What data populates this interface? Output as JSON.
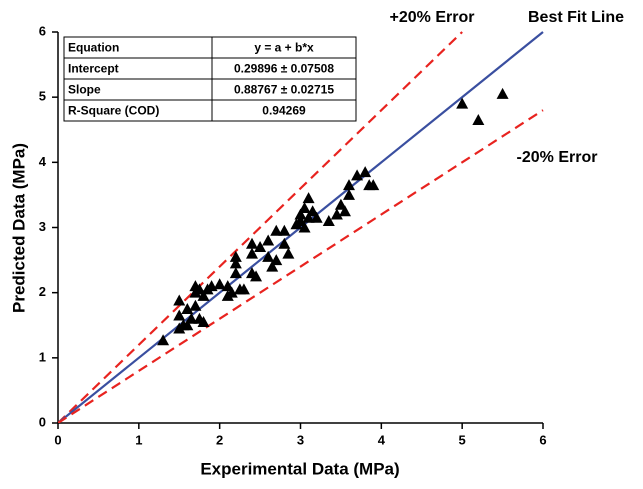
{
  "chart_data": {
    "type": "scatter",
    "xlabel": "Experimental Data (MPa)",
    "ylabel": "Predicted Data (MPa)",
    "xlim": [
      0,
      6
    ],
    "ylim": [
      0,
      6
    ],
    "xticks": [
      0,
      1,
      2,
      3,
      4,
      5,
      6
    ],
    "yticks": [
      0,
      1,
      2,
      3,
      4,
      5,
      6
    ],
    "series": [
      {
        "type": "scatter",
        "color": "#000000",
        "x": [
          1.3,
          1.5,
          1.5,
          1.5,
          1.55,
          1.6,
          1.6,
          1.65,
          1.7,
          1.7,
          1.7,
          1.75,
          1.75,
          1.8,
          1.8,
          1.85,
          1.9,
          2.0,
          2.1,
          2.1,
          2.15,
          2.2,
          2.2,
          2.2,
          2.25,
          2.3,
          2.4,
          2.4,
          2.4,
          2.45,
          2.5,
          2.6,
          2.6,
          2.65,
          2.7,
          2.7,
          2.8,
          2.8,
          2.85,
          2.95,
          3.0,
          3.0,
          3.05,
          3.05,
          3.1,
          3.1,
          3.15,
          3.2,
          3.35,
          3.45,
          3.5,
          3.55,
          3.6,
          3.6,
          3.7,
          3.8,
          3.85,
          3.9,
          5.0,
          5.2,
          5.5
        ],
        "values": [
          1.27,
          1.88,
          1.65,
          1.45,
          1.5,
          1.75,
          1.5,
          1.6,
          2.1,
          2.0,
          1.8,
          2.05,
          1.6,
          1.95,
          1.55,
          2.05,
          2.1,
          2.13,
          1.95,
          2.1,
          2.0,
          2.55,
          2.45,
          2.3,
          2.05,
          2.05,
          2.75,
          2.6,
          2.3,
          2.25,
          2.7,
          2.8,
          2.55,
          2.4,
          2.95,
          2.5,
          2.95,
          2.75,
          2.6,
          3.05,
          3.2,
          3.1,
          3.3,
          3.0,
          3.45,
          3.15,
          3.25,
          3.15,
          3.1,
          3.2,
          3.35,
          3.25,
          3.5,
          3.65,
          3.8,
          3.85,
          3.65,
          3.65,
          4.9,
          4.65,
          5.05
        ]
      },
      {
        "type": "line",
        "name": "+20% Error",
        "color": "#e8231f",
        "dashed": true,
        "x": [
          0,
          5
        ],
        "values": [
          0,
          6
        ]
      },
      {
        "type": "line",
        "name": "Best Fit Line",
        "color": "#3a4fa0",
        "dashed": false,
        "x": [
          0,
          6
        ],
        "values": [
          0,
          6
        ]
      },
      {
        "type": "line",
        "name": "-20% Error",
        "color": "#e8231f",
        "dashed": true,
        "x": [
          0,
          6
        ],
        "values": [
          0,
          4.8
        ]
      }
    ],
    "table": {
      "header": [
        "Equation",
        "y = a + b*x"
      ],
      "rows": [
        [
          "Intercept",
          "0.29896 ± 0.07508"
        ],
        [
          "Slope",
          "0.88767 ± 0.02715"
        ],
        [
          "R-Square (COD)",
          "0.94269"
        ]
      ]
    }
  }
}
